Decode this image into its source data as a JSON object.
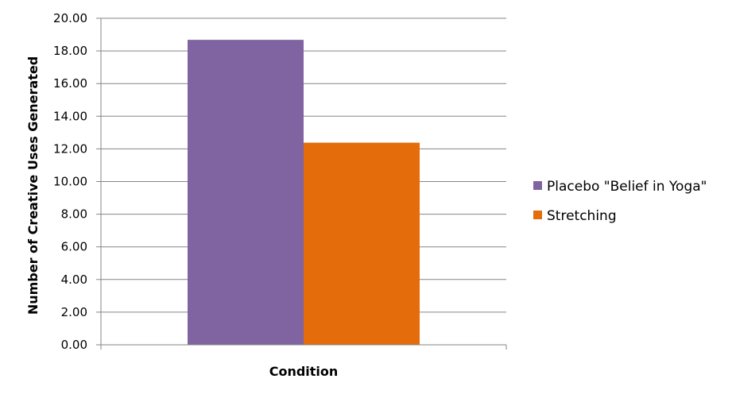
{
  "chart_data": {
    "type": "bar",
    "title": "",
    "xlabel": "Condition",
    "ylabel": "Number of Creative Uses Generated",
    "ylim": [
      0,
      20
    ],
    "ystep": 2,
    "tick_labels": [
      "0.00",
      "2.00",
      "4.00",
      "6.00",
      "8.00",
      "10.00",
      "12.00",
      "14.00",
      "16.00",
      "18.00",
      "20.00"
    ],
    "categories": [
      ""
    ],
    "series": [
      {
        "name": "Placebo \"Belief in Yoga\"",
        "values": [
          18.68
        ],
        "color": "#8064A2"
      },
      {
        "name": "Stretching",
        "values": [
          12.38
        ],
        "color": "#E46C0A"
      }
    ],
    "grid": true,
    "legend_position": "right"
  }
}
